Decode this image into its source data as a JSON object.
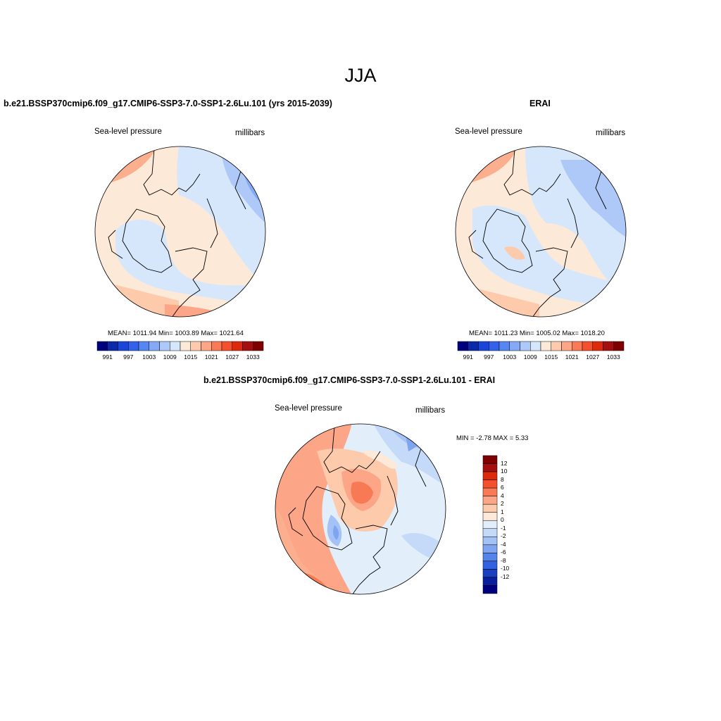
{
  "figure": {
    "title": "JJA"
  },
  "panels": [
    {
      "title": "b.e21.BSSP370cmip6.f09_g17.CMIP6-SSP3-7.0-SSP1-2.6Lu.101 (yrs 2015-2039)",
      "left_label": "Sea-level pressure",
      "right_label": "millibars",
      "stats": "MEAN= 1011.94  Min= 1003.89  Max= 1021.64",
      "colorbar": {
        "colors": [
          "#00007f",
          "#0a29a8",
          "#1a45d8",
          "#3461ec",
          "#5586f2",
          "#84a9f5",
          "#aec8f8",
          "#d6e7fb",
          "#fde9d8",
          "#fdcaac",
          "#fca687",
          "#fa7a58",
          "#f4502e",
          "#dd2a0d",
          "#a50f0f",
          "#7f0000"
        ],
        "tick_labels": [
          "991",
          "997",
          "1003",
          "1009",
          "1015",
          "1021",
          "1027",
          "1033"
        ]
      }
    },
    {
      "title": "ERAI",
      "left_label": "Sea-level pressure",
      "right_label": "millibars",
      "stats": "MEAN= 1011.23  Min= 1005.02  Max= 1018.20",
      "colorbar": {
        "colors": [
          "#00007f",
          "#0a29a8",
          "#1a45d8",
          "#3461ec",
          "#5586f2",
          "#84a9f5",
          "#aec8f8",
          "#d6e7fb",
          "#fde9d8",
          "#fdcaac",
          "#fca687",
          "#fa7a58",
          "#f4502e",
          "#dd2a0d",
          "#a50f0f",
          "#7f0000"
        ],
        "tick_labels": [
          "991",
          "997",
          "1003",
          "1009",
          "1015",
          "1021",
          "1027",
          "1033"
        ]
      }
    },
    {
      "title": "b.e21.BSSP370cmip6.f09_g17.CMIP6-SSP3-7.0-SSP1-2.6Lu.101 - ERAI",
      "left_label": "Sea-level pressure",
      "right_label": "millibars",
      "stats": "MIN =  -2.78 MAX =   5.33",
      "colorbar": {
        "colors": [
          "#7f0000",
          "#a50f0f",
          "#dd2a0d",
          "#f4502e",
          "#fa7a58",
          "#fca687",
          "#fdcaac",
          "#fde9d8",
          "#e3eefb",
          "#c5daf8",
          "#a4c2f5",
          "#7fa5f0",
          "#5583ea",
          "#3461e0",
          "#1a3fc0",
          "#0a1fa0",
          "#00007f"
        ],
        "tick_labels": [
          "12",
          "10",
          "8",
          "6",
          "4",
          "2",
          "1",
          "0",
          "-1",
          "-2",
          "-4",
          "-6",
          "-8",
          "-10",
          "-12"
        ]
      }
    }
  ]
}
